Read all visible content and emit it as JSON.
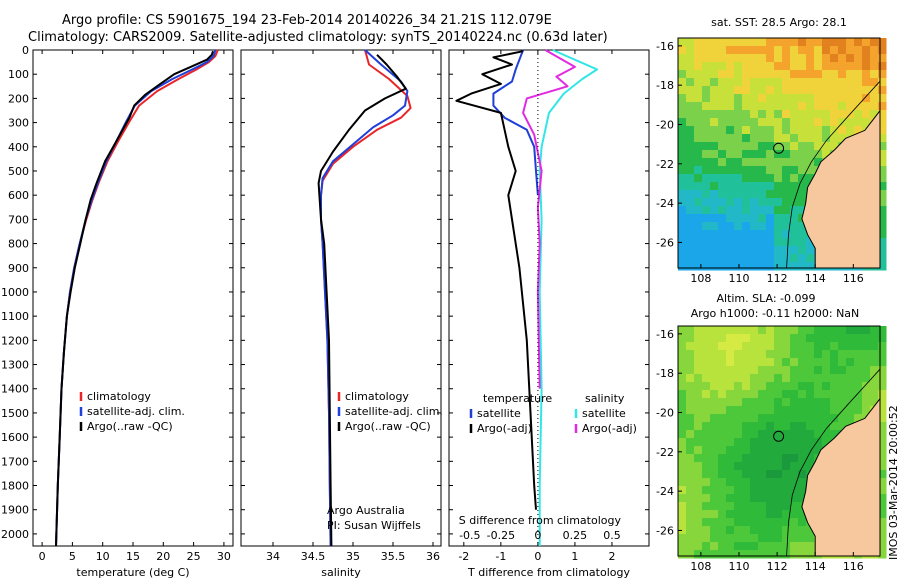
{
  "title": {
    "line1": "Argo profile: CS 5901675_194 23-Feb-2014 20140226_34 21.21S 112.079E",
    "line2": "Climatology: CARS2009. Satellite-adjusted climatology: synTS_20140224.nc (0.63d later)"
  },
  "colors": {
    "climatology": "#e8262a",
    "satellite": "#1f3fd8",
    "argo": "#000000",
    "sal_satellite": "#33e6e6",
    "sal_argo": "#e22ae2",
    "land": "#f7c79d"
  },
  "depth_axis": {
    "ylim": [
      0,
      2050
    ],
    "ticks": [
      0,
      100,
      200,
      300,
      400,
      500,
      600,
      700,
      800,
      900,
      1000,
      1100,
      1200,
      1300,
      1400,
      1500,
      1600,
      1700,
      1800,
      1900,
      2000
    ]
  },
  "chart_data": [
    {
      "type": "line",
      "id": "temperature",
      "xlabel": "temperature (deg C)",
      "xlim": [
        -1.5,
        31.5
      ],
      "xticks": [
        0,
        5,
        10,
        15,
        20,
        25,
        30
      ],
      "legend": [
        "climatology",
        "satellite-adj. clim.",
        "Argo(..raw -QC)"
      ],
      "series": [
        {
          "name": "climatology",
          "color": "#e8262a",
          "x": [
            29,
            28.6,
            27.5,
            25.5,
            22.5,
            19,
            16,
            14.3,
            12.5,
            10.8,
            9.3,
            8.3,
            7.3,
            6.2,
            5.3,
            4.6,
            4.1,
            3.6,
            3.2,
            2.9,
            2.6,
            2.3
          ],
          "y": [
            0,
            25,
            50,
            80,
            120,
            170,
            230,
            300,
            380,
            460,
            550,
            620,
            700,
            800,
            900,
            1000,
            1100,
            1250,
            1400,
            1600,
            1800,
            2050
          ]
        },
        {
          "name": "satellite-adj. clim.",
          "color": "#1f3fd8",
          "x": [
            28.6,
            28.3,
            27.2,
            24.8,
            21.5,
            18,
            15.3,
            13.8,
            12.2,
            10.6,
            9.2,
            8.2,
            7.2,
            6.2,
            5.3,
            4.6,
            4.1,
            3.6,
            3.2,
            2.9,
            2.6,
            2.3
          ],
          "y": [
            0,
            25,
            50,
            80,
            120,
            170,
            230,
            300,
            380,
            460,
            550,
            620,
            700,
            800,
            900,
            1000,
            1100,
            1250,
            1400,
            1600,
            1800,
            2050
          ]
        },
        {
          "name": "Argo(..raw -QC)",
          "color": "#000000",
          "x": [
            28.2,
            28.0,
            27.2,
            24.5,
            21.8,
            19.5,
            17.0,
            15.2,
            14.4,
            13.3,
            12.2,
            10.4,
            9.0,
            8.0,
            7.2,
            6.3,
            5.4,
            4.7,
            4.1,
            3.6,
            3.2,
            2.9,
            2.6,
            2.3
          ],
          "y": [
            5,
            20,
            40,
            70,
            100,
            140,
            185,
            230,
            280,
            330,
            380,
            460,
            550,
            620,
            700,
            800,
            900,
            1000,
            1100,
            1250,
            1400,
            1600,
            1800,
            2050
          ]
        }
      ]
    },
    {
      "type": "line",
      "id": "salinity",
      "xlabel": "salinity",
      "xlim": [
        33.6,
        36.1
      ],
      "xticks": [
        34,
        34.5,
        35,
        35.5,
        36
      ],
      "legend": [
        "climatology",
        "satellite-adj. clim.",
        "Argo(..raw -QC)"
      ],
      "annotation": [
        "Argo Australia",
        "PI: Susan Wijffels"
      ],
      "series": [
        {
          "name": "climatology",
          "color": "#e8262a",
          "x": [
            35.15,
            35.2,
            35.45,
            35.68,
            35.72,
            35.6,
            35.3,
            35.0,
            34.75,
            34.62,
            34.6,
            34.6,
            34.62,
            34.65,
            34.68,
            34.7,
            34.71,
            34.72
          ],
          "y": [
            0,
            60,
            120,
            190,
            240,
            280,
            330,
            400,
            470,
            540,
            600,
            700,
            800,
            1000,
            1200,
            1500,
            1800,
            2050
          ]
        },
        {
          "name": "satellite-adj. clim.",
          "color": "#1f3fd8",
          "x": [
            35.15,
            35.35,
            35.6,
            35.68,
            35.65,
            35.5,
            35.25,
            35.0,
            34.75,
            34.62,
            34.6,
            34.6,
            34.62,
            34.65,
            34.68,
            34.7,
            34.71,
            34.72
          ],
          "y": [
            0,
            60,
            130,
            170,
            230,
            270,
            320,
            390,
            460,
            530,
            600,
            700,
            800,
            1000,
            1200,
            1500,
            1800,
            2050
          ]
        },
        {
          "name": "Argo(..raw -QC)",
          "color": "#000000",
          "x": [
            35.3,
            35.42,
            35.55,
            35.66,
            35.4,
            35.15,
            34.95,
            34.75,
            34.6,
            34.57,
            34.58,
            34.6,
            34.64,
            34.67,
            34.7,
            34.71,
            34.72,
            34.73
          ],
          "y": [
            20,
            60,
            110,
            160,
            200,
            250,
            330,
            420,
            500,
            550,
            600,
            700,
            800,
            1000,
            1200,
            1500,
            1800,
            2050
          ]
        }
      ]
    },
    {
      "type": "line",
      "id": "difference",
      "xlabel": "T difference from climatology",
      "xlabel_top": "S difference from climatology",
      "xlim": [
        -2.4,
        3.0
      ],
      "xticks": [
        -2,
        -1,
        0,
        1,
        2
      ],
      "xtick_labels": [
        "-2",
        "-1",
        "0",
        "1",
        "2"
      ],
      "top_ticks": [
        -2.0,
        -1.0,
        0.0,
        1.0,
        2.0
      ],
      "top_tick_labels": [
        "-0.5",
        "-0.25",
        "0",
        "0.25",
        "0.5"
      ],
      "legend_left_title": "temperature",
      "legend_right_title": "salinity",
      "legend": [
        "satellite",
        "Argo(-adj)",
        "satellite",
        "Argo(-adj)"
      ],
      "series": [
        {
          "name": "T satellite",
          "color": "#1f3fd8",
          "x": [
            -0.4,
            -0.5,
            -0.6,
            -0.7,
            -1.2,
            -1.2,
            -0.9,
            -0.3,
            -0.1,
            -0.05,
            0
          ],
          "y": [
            0,
            40,
            80,
            130,
            180,
            230,
            280,
            330,
            400,
            500,
            600
          ]
        },
        {
          "name": "T Argo(-adj)",
          "color": "#000000",
          "x": [
            -0.4,
            -1.2,
            -0.7,
            -1.5,
            -1.0,
            -1.8,
            -2.2,
            -1.0,
            -0.8,
            -0.6,
            -0.8,
            -0.5,
            -0.3,
            -0.2,
            -0.1,
            -0.05
          ],
          "y": [
            5,
            30,
            60,
            100,
            140,
            180,
            210,
            260,
            400,
            500,
            600,
            900,
            1200,
            1500,
            1800,
            1900
          ]
        },
        {
          "name": "S satellite",
          "color": "#33e6e6",
          "x": [
            0.4,
            1.6,
            1.2,
            0.7,
            0.3,
            0.1,
            0.05,
            0.1,
            0.05,
            0.1,
            0.05,
            0.05
          ],
          "y": [
            0,
            80,
            120,
            180,
            260,
            400,
            500,
            700,
            1000,
            1400,
            1800,
            2050
          ]
        },
        {
          "name": "S Argo(-adj)",
          "color": "#e22ae2",
          "x": [
            0.2,
            1.0,
            0.5,
            0.8,
            -0.3,
            -0.4,
            -0.1,
            0.1,
            0.0,
            0.05,
            0.0,
            0.05
          ],
          "y": [
            0,
            70,
            110,
            150,
            200,
            260,
            350,
            500,
            650,
            800,
            1000,
            1400
          ]
        }
      ]
    },
    {
      "type": "heatmap",
      "id": "sst_map",
      "title": "sat. SST: 28.5  Argo: 28.1",
      "xlim": [
        106.8,
        117.4
      ],
      "ylim": [
        -27.3,
        -15.6
      ],
      "xticks": [
        108,
        110,
        112,
        114,
        116
      ],
      "yticks": [
        -16,
        -18,
        -20,
        -22,
        -24,
        -26
      ],
      "marker": {
        "lon": 112.079,
        "lat": -21.21
      }
    },
    {
      "type": "heatmap",
      "id": "sla_map",
      "title_line1": "Altim. SLA: -0.099",
      "title_line2": "Argo h1000: -0.11  h2000: NaN",
      "xlim": [
        106.8,
        117.4
      ],
      "ylim": [
        -27.3,
        -15.6
      ],
      "xticks": [
        108,
        110,
        112,
        114,
        116
      ],
      "yticks": [
        -16,
        -18,
        -20,
        -22,
        -24,
        -26
      ],
      "marker": {
        "lon": 112.079,
        "lat": -21.21
      }
    }
  ],
  "side_label": "IMOS 03-Mar-2014 20:00:52"
}
